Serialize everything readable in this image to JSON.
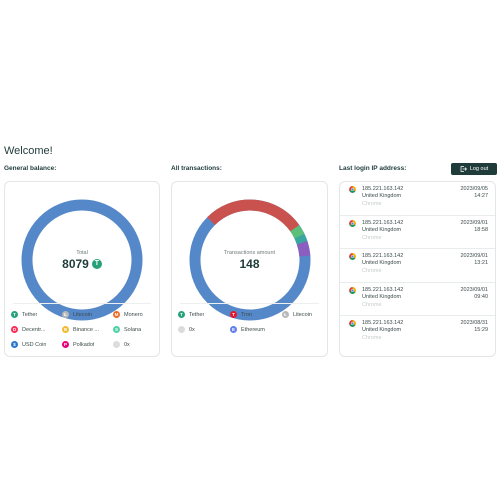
{
  "header": {
    "welcome": "Welcome!"
  },
  "balance": {
    "title": "General balance:",
    "center_label": "Total",
    "center_value": "8079",
    "center_currency_badge": "T",
    "legend": [
      {
        "label": "Tether",
        "color": "#26a17b",
        "glyph": "T"
      },
      {
        "label": "Litecoin",
        "color": "#b8b8b8",
        "glyph": "Ł"
      },
      {
        "label": "Monero",
        "color": "#f26822",
        "glyph": "M"
      },
      {
        "label": "Decentr...",
        "color": "#ff2d55",
        "glyph": "D"
      },
      {
        "label": "Binance ...",
        "color": "#f3ba2f",
        "glyph": "B"
      },
      {
        "label": "Solana",
        "color": "#4fd1a5",
        "glyph": "S"
      },
      {
        "label": "USD Coin",
        "color": "#2775ca",
        "glyph": "$"
      },
      {
        "label": "Polkadot",
        "color": "#e6007a",
        "glyph": "P"
      },
      {
        "label": "0x",
        "color": "#dcdcdc",
        "glyph": ""
      }
    ]
  },
  "transactions": {
    "title": "All transactions:",
    "center_label": "Transactions amount",
    "center_value": "148",
    "legend": [
      {
        "label": "Tether",
        "color": "#26a17b",
        "glyph": "T"
      },
      {
        "label": "Tron",
        "color": "#e3182d",
        "glyph": "T"
      },
      {
        "label": "Litecoin",
        "color": "#b8b8b8",
        "glyph": "Ł"
      },
      {
        "label": "0x",
        "color": "#dcdcdc",
        "glyph": ""
      },
      {
        "label": "Ethereum",
        "color": "#627eea",
        "glyph": "E"
      }
    ]
  },
  "logins": {
    "title": "Last login IP address:",
    "logout_label": "Log out",
    "rows": [
      {
        "ip": "185.221.163.142",
        "country": "United Kingdom",
        "browser": "Chrome",
        "date": "2023/09/05",
        "time": "14:27"
      },
      {
        "ip": "185.221.163.142",
        "country": "United Kingdom",
        "browser": "Chrome",
        "date": "2023/09/01",
        "time": "18:58"
      },
      {
        "ip": "185.221.163.142",
        "country": "United Kingdom",
        "browser": "Chrome",
        "date": "2023/09/01",
        "time": "13:21"
      },
      {
        "ip": "185.221.163.142",
        "country": "United Kingdom",
        "browser": "Chrome",
        "date": "2023/09/01",
        "time": "09:40"
      },
      {
        "ip": "185.221.163.142",
        "country": "United Kingdom",
        "browser": "Chrome",
        "date": "2023/08/31",
        "time": "15:29"
      }
    ]
  },
  "donut_colors": {
    "balance": "#5588c8",
    "transactions_main": "#5588c8",
    "transactions_red": "#c9524f",
    "transactions_green": "#5cbf79",
    "transactions_teal": "#3aa6a0",
    "transactions_purple": "#8a5fc0"
  }
}
